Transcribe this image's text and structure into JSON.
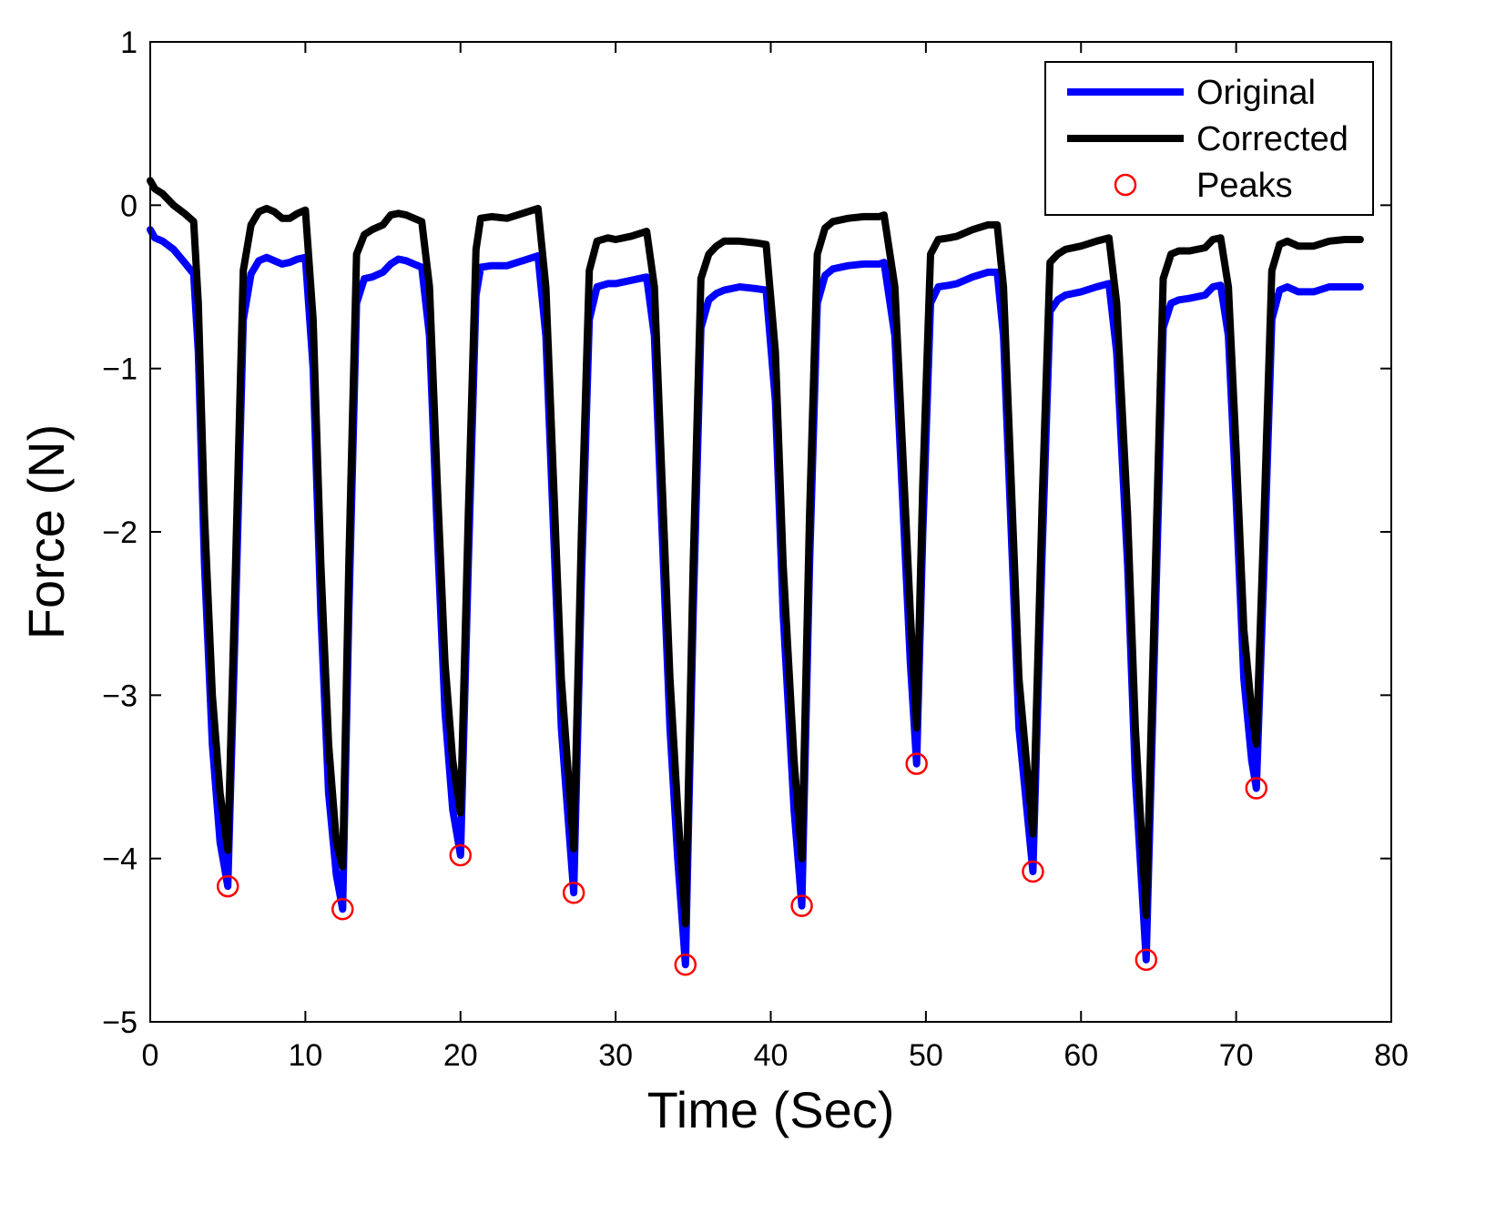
{
  "chart_data": {
    "type": "line",
    "title": "",
    "xlabel": "Time (Sec)",
    "ylabel": "Force (N)",
    "xlim": [
      0,
      80
    ],
    "ylim": [
      -5,
      1
    ],
    "xticks": [
      0,
      10,
      20,
      30,
      40,
      50,
      60,
      70,
      80
    ],
    "yticks": [
      1,
      0,
      -1,
      -2,
      -3,
      -4,
      -5
    ],
    "xtick_labels": [
      "0",
      "10",
      "20",
      "30",
      "40",
      "50",
      "60",
      "70",
      "80"
    ],
    "ytick_labels": [
      "1",
      "0",
      "−1",
      "−2",
      "−3",
      "−4",
      "−5"
    ],
    "grid": false,
    "legend_position": "top-right",
    "colors": {
      "original": "#0000ff",
      "corrected": "#000000",
      "peaks": "#ff0000"
    },
    "series": [
      {
        "name": "Original",
        "style": "line",
        "x": [
          0.0,
          0.3,
          0.8,
          1.5,
          2.2,
          2.8,
          3.1,
          3.5,
          4.0,
          4.5,
          5.0,
          5.5,
          6.0,
          6.5,
          7.0,
          7.5,
          8.0,
          8.5,
          9.0,
          9.5,
          10.0,
          10.5,
          11.0,
          11.5,
          12.0,
          12.4,
          12.8,
          13.3,
          13.8,
          14.3,
          15.0,
          15.5,
          16.0,
          16.5,
          17.0,
          17.5,
          18.0,
          18.5,
          19.0,
          19.5,
          20.0,
          20.5,
          21.0,
          21.3,
          22.0,
          23.0,
          24.0,
          25.0,
          25.5,
          26.0,
          26.5,
          27.3,
          27.8,
          28.3,
          28.8,
          29.5,
          30.0,
          31.0,
          32.0,
          32.5,
          33.0,
          33.5,
          34.0,
          34.5,
          35.0,
          35.5,
          36.0,
          36.5,
          37.0,
          38.0,
          39.0,
          39.7,
          40.3,
          40.8,
          41.5,
          42.0,
          42.5,
          43.0,
          43.5,
          44.0,
          45.0,
          46.0,
          47.0,
          47.3,
          48.0,
          48.5,
          49.0,
          49.4,
          49.8,
          50.3,
          50.8,
          51.5,
          52.0,
          53.0,
          54.0,
          54.6,
          55.0,
          55.5,
          56.0,
          56.9,
          57.5,
          58.0,
          58.5,
          59.0,
          60.0,
          61.0,
          61.8,
          62.3,
          63.0,
          63.5,
          64.2,
          64.8,
          65.3,
          65.8,
          66.3,
          67.0,
          68.0,
          68.5,
          69.0,
          69.5,
          70.0,
          70.5,
          71.0,
          71.3,
          71.8,
          72.3,
          72.8,
          73.3,
          74.0,
          75.0,
          76.0,
          77.0,
          78.0
        ],
        "values": [
          -0.15,
          -0.2,
          -0.22,
          -0.27,
          -0.35,
          -0.42,
          -0.9,
          -2.2,
          -3.3,
          -3.9,
          -4.17,
          -2.5,
          -0.7,
          -0.42,
          -0.34,
          -0.32,
          -0.34,
          -0.36,
          -0.35,
          -0.33,
          -0.32,
          -1.0,
          -2.5,
          -3.6,
          -4.1,
          -4.31,
          -2.5,
          -0.6,
          -0.45,
          -0.44,
          -0.41,
          -0.36,
          -0.33,
          -0.34,
          -0.36,
          -0.38,
          -0.8,
          -2.0,
          -3.1,
          -3.7,
          -3.98,
          -2.2,
          -0.55,
          -0.38,
          -0.37,
          -0.37,
          -0.34,
          -0.31,
          -0.8,
          -2.0,
          -3.2,
          -4.21,
          -2.3,
          -0.7,
          -0.5,
          -0.48,
          -0.48,
          -0.46,
          -0.44,
          -0.8,
          -2.0,
          -3.2,
          -4.0,
          -4.65,
          -2.5,
          -0.75,
          -0.58,
          -0.54,
          -0.52,
          -0.5,
          -0.51,
          -0.52,
          -1.2,
          -2.5,
          -3.7,
          -4.29,
          -2.2,
          -0.6,
          -0.43,
          -0.39,
          -0.37,
          -0.36,
          -0.36,
          -0.35,
          -0.8,
          -1.8,
          -2.8,
          -3.42,
          -2.0,
          -0.6,
          -0.5,
          -0.49,
          -0.48,
          -0.44,
          -0.41,
          -0.41,
          -0.8,
          -2.0,
          -3.2,
          -4.08,
          -2.1,
          -0.65,
          -0.58,
          -0.55,
          -0.53,
          -0.5,
          -0.48,
          -0.9,
          -2.2,
          -3.5,
          -4.62,
          -2.5,
          -0.75,
          -0.6,
          -0.58,
          -0.57,
          -0.55,
          -0.5,
          -0.49,
          -0.8,
          -1.8,
          -2.9,
          -3.4,
          -3.57,
          -2.2,
          -0.7,
          -0.52,
          -0.5,
          -0.53,
          -0.53,
          -0.5,
          -0.5,
          -0.5
        ]
      },
      {
        "name": "Corrected",
        "style": "line",
        "x": [
          0.0,
          0.3,
          0.8,
          1.5,
          2.2,
          2.8,
          3.1,
          3.5,
          4.0,
          4.5,
          5.0,
          5.5,
          6.0,
          6.5,
          7.0,
          7.5,
          8.0,
          8.5,
          9.0,
          9.5,
          10.0,
          10.5,
          11.0,
          11.5,
          12.0,
          12.4,
          12.8,
          13.3,
          13.8,
          14.3,
          15.0,
          15.5,
          16.0,
          16.5,
          17.0,
          17.5,
          18.0,
          18.5,
          19.0,
          19.5,
          20.0,
          20.5,
          21.0,
          21.3,
          22.0,
          23.0,
          24.0,
          25.0,
          25.5,
          26.0,
          26.5,
          27.3,
          27.8,
          28.3,
          28.8,
          29.5,
          30.0,
          31.0,
          32.0,
          32.5,
          33.0,
          33.5,
          34.0,
          34.5,
          35.0,
          35.5,
          36.0,
          36.5,
          37.0,
          38.0,
          39.0,
          39.7,
          40.3,
          40.8,
          41.5,
          42.0,
          42.5,
          43.0,
          43.5,
          44.0,
          45.0,
          46.0,
          47.0,
          47.3,
          48.0,
          48.5,
          49.0,
          49.4,
          49.8,
          50.3,
          50.8,
          51.5,
          52.0,
          53.0,
          54.0,
          54.6,
          55.0,
          55.5,
          56.0,
          56.9,
          57.5,
          58.0,
          58.5,
          59.0,
          60.0,
          61.0,
          61.8,
          62.3,
          63.0,
          63.5,
          64.2,
          64.8,
          65.3,
          65.8,
          66.3,
          67.0,
          68.0,
          68.5,
          69.0,
          69.5,
          70.0,
          70.5,
          71.0,
          71.3,
          71.8,
          72.3,
          72.8,
          73.3,
          74.0,
          75.0,
          76.0,
          77.0,
          78.0
        ],
        "values": [
          0.15,
          0.1,
          0.07,
          0.0,
          -0.05,
          -0.1,
          -0.6,
          -1.9,
          -3.0,
          -3.6,
          -3.95,
          -2.2,
          -0.4,
          -0.12,
          -0.04,
          -0.02,
          -0.04,
          -0.08,
          -0.08,
          -0.05,
          -0.03,
          -0.7,
          -2.2,
          -3.3,
          -3.9,
          -4.05,
          -2.2,
          -0.3,
          -0.18,
          -0.15,
          -0.12,
          -0.06,
          -0.05,
          -0.06,
          -0.08,
          -0.1,
          -0.5,
          -1.7,
          -2.8,
          -3.4,
          -3.72,
          -1.9,
          -0.27,
          -0.08,
          -0.07,
          -0.08,
          -0.05,
          -0.02,
          -0.5,
          -1.7,
          -2.9,
          -3.94,
          -2.0,
          -0.4,
          -0.22,
          -0.2,
          -0.21,
          -0.19,
          -0.16,
          -0.5,
          -1.7,
          -2.9,
          -3.7,
          -4.4,
          -2.2,
          -0.45,
          -0.3,
          -0.25,
          -0.22,
          -0.22,
          -0.23,
          -0.24,
          -0.9,
          -2.2,
          -3.4,
          -4.0,
          -1.9,
          -0.3,
          -0.14,
          -0.1,
          -0.08,
          -0.07,
          -0.07,
          -0.06,
          -0.5,
          -1.5,
          -2.5,
          -3.2,
          -1.7,
          -0.3,
          -0.21,
          -0.2,
          -0.19,
          -0.15,
          -0.12,
          -0.12,
          -0.5,
          -1.7,
          -2.9,
          -3.85,
          -1.8,
          -0.35,
          -0.3,
          -0.27,
          -0.25,
          -0.22,
          -0.2,
          -0.6,
          -1.9,
          -3.2,
          -4.35,
          -2.2,
          -0.45,
          -0.3,
          -0.28,
          -0.28,
          -0.26,
          -0.21,
          -0.2,
          -0.5,
          -1.5,
          -2.6,
          -3.1,
          -3.3,
          -1.9,
          -0.4,
          -0.24,
          -0.22,
          -0.25,
          -0.25,
          -0.22,
          -0.21,
          -0.21
        ]
      },
      {
        "name": "Peaks",
        "style": "markers",
        "x": [
          5.0,
          12.4,
          20.0,
          27.3,
          34.5,
          42.0,
          49.4,
          56.9,
          64.2,
          71.3
        ],
        "values": [
          -4.17,
          -4.31,
          -3.98,
          -4.21,
          -4.65,
          -4.29,
          -3.42,
          -4.08,
          -4.62,
          -3.57
        ]
      }
    ]
  }
}
